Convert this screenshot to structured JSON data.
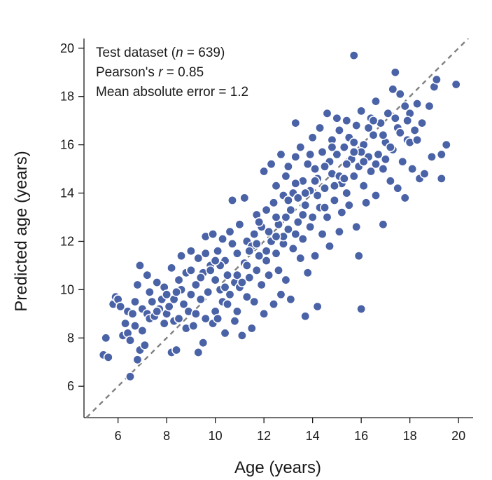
{
  "chart_data": {
    "type": "scatter",
    "xlabel": "Age (years)",
    "ylabel": "Predicted age (years)",
    "xlim": [
      4.6,
      20.6
    ],
    "ylim": [
      4.7,
      20.4
    ],
    "xticks": [
      "6",
      "8",
      "10",
      "12",
      "14",
      "16",
      "18",
      "20"
    ],
    "yticks": [
      "6",
      "8",
      "10",
      "12",
      "14",
      "16",
      "18",
      "20"
    ],
    "annotations": {
      "line1_prefix": "Test dataset (",
      "line1_n": "n",
      "line1_suffix": " = 639)",
      "line2_prefix": "Pearson's ",
      "line2_r": "r",
      "line2_suffix": " = 0.85",
      "line3": "Mean absolute error = 1.2"
    },
    "reference_line": "identity (y = x), dashed",
    "grid": false,
    "colors": {
      "points": "#4a62a6",
      "reference_line": "#808080"
    },
    "series": [
      {
        "points": [
          [
            5.4,
            7.3
          ],
          [
            5.5,
            8.0
          ],
          [
            5.6,
            7.2
          ],
          [
            5.8,
            9.4
          ],
          [
            5.9,
            9.7
          ],
          [
            6.0,
            9.6
          ],
          [
            6.1,
            9.3
          ],
          [
            6.2,
            8.1
          ],
          [
            6.4,
            8.2
          ],
          [
            6.4,
            9.1
          ],
          [
            6.5,
            7.9
          ],
          [
            6.5,
            6.4
          ],
          [
            6.6,
            9.0
          ],
          [
            6.7,
            8.5
          ],
          [
            6.8,
            7.1
          ],
          [
            6.8,
            10.2
          ],
          [
            6.9,
            11.0
          ],
          [
            6.9,
            7.5
          ],
          [
            7.0,
            8.3
          ],
          [
            7.0,
            9.2
          ],
          [
            7.1,
            7.7
          ],
          [
            7.2,
            10.6
          ],
          [
            7.2,
            9.0
          ],
          [
            7.3,
            8.8
          ],
          [
            7.4,
            9.5
          ],
          [
            7.5,
            8.9
          ],
          [
            7.6,
            10.3
          ],
          [
            7.7,
            9.2
          ],
          [
            7.8,
            9.6
          ],
          [
            7.9,
            10.1
          ],
          [
            8.0,
            9.0
          ],
          [
            8.1,
            9.3
          ],
          [
            8.2,
            7.4
          ],
          [
            8.2,
            10.9
          ],
          [
            8.3,
            8.7
          ],
          [
            8.3,
            9.6
          ],
          [
            8.4,
            7.5
          ],
          [
            8.5,
            10.4
          ],
          [
            8.5,
            8.8
          ],
          [
            8.6,
            11.4
          ],
          [
            8.7,
            9.4
          ],
          [
            8.8,
            8.4
          ],
          [
            8.8,
            10.7
          ],
          [
            8.9,
            9.1
          ],
          [
            9.0,
            11.6
          ],
          [
            9.0,
            9.8
          ],
          [
            9.1,
            8.5
          ],
          [
            9.2,
            10.2
          ],
          [
            9.3,
            7.4
          ],
          [
            9.3,
            11.3
          ],
          [
            9.4,
            9.6
          ],
          [
            9.5,
            7.8
          ],
          [
            9.5,
            10.7
          ],
          [
            9.6,
            8.8
          ],
          [
            9.6,
            12.2
          ],
          [
            9.7,
            9.9
          ],
          [
            9.8,
            11.0
          ],
          [
            9.9,
            8.6
          ],
          [
            9.9,
            12.3
          ],
          [
            10.0,
            10.4
          ],
          [
            10.0,
            9.1
          ],
          [
            10.1,
            11.6
          ],
          [
            10.1,
            8.8
          ],
          [
            10.2,
            10.0
          ],
          [
            10.3,
            12.1
          ],
          [
            10.3,
            9.5
          ],
          [
            10.4,
            11.2
          ],
          [
            10.4,
            8.2
          ],
          [
            10.5,
            10.6
          ],
          [
            10.6,
            9.8
          ],
          [
            10.6,
            12.4
          ],
          [
            10.7,
            13.7
          ],
          [
            10.8,
            10.3
          ],
          [
            10.8,
            8.7
          ],
          [
            10.9,
            11.5
          ],
          [
            10.9,
            9.1
          ],
          [
            11.0,
            12.7
          ],
          [
            11.0,
            10.1
          ],
          [
            11.1,
            8.1
          ],
          [
            11.2,
            13.8
          ],
          [
            11.2,
            11.1
          ],
          [
            11.3,
            9.7
          ],
          [
            11.3,
            12.0
          ],
          [
            11.4,
            10.5
          ],
          [
            11.5,
            8.4
          ],
          [
            11.5,
            11.8
          ],
          [
            11.6,
            12.3
          ],
          [
            11.6,
            9.5
          ],
          [
            11.7,
            10.8
          ],
          [
            11.7,
            13.1
          ],
          [
            11.8,
            11.4
          ],
          [
            11.9,
            10.2
          ],
          [
            11.9,
            12.6
          ],
          [
            12.0,
            9.0
          ],
          [
            12.0,
            14.9
          ],
          [
            12.1,
            11.2
          ],
          [
            12.1,
            13.3
          ],
          [
            12.2,
            10.6
          ],
          [
            12.3,
            12.0
          ],
          [
            12.3,
            15.2
          ],
          [
            12.4,
            9.4
          ],
          [
            12.4,
            13.6
          ],
          [
            12.5,
            11.5
          ],
          [
            12.5,
            14.3
          ],
          [
            12.6,
            10.8
          ],
          [
            12.6,
            12.7
          ],
          [
            12.7,
            15.6
          ],
          [
            12.7,
            9.8
          ],
          [
            12.8,
            13.9
          ],
          [
            12.8,
            11.9
          ],
          [
            12.9,
            14.7
          ],
          [
            12.9,
            10.4
          ],
          [
            13.0,
            12.5
          ],
          [
            13.0,
            15.1
          ],
          [
            13.1,
            13.3
          ],
          [
            13.1,
            9.6
          ],
          [
            13.2,
            14.0
          ],
          [
            13.2,
            11.7
          ],
          [
            13.3,
            16.9
          ],
          [
            13.3,
            15.5
          ],
          [
            13.4,
            12.8
          ],
          [
            13.4,
            13.8
          ],
          [
            13.5,
            11.3
          ],
          [
            13.5,
            15.9
          ],
          [
            13.6,
            14.5
          ],
          [
            13.6,
            12.1
          ],
          [
            13.7,
            13.5
          ],
          [
            13.7,
            8.9
          ],
          [
            13.8,
            15.2
          ],
          [
            13.8,
            10.7
          ],
          [
            13.9,
            14.1
          ],
          [
            13.9,
            12.6
          ],
          [
            14.0,
            16.3
          ],
          [
            14.0,
            13.0
          ],
          [
            14.1,
            15.0
          ],
          [
            14.1,
            11.4
          ],
          [
            14.2,
            14.6
          ],
          [
            14.2,
            9.3
          ],
          [
            14.3,
            16.7
          ],
          [
            14.3,
            13.4
          ],
          [
            14.4,
            15.7
          ],
          [
            14.4,
            12.3
          ],
          [
            14.5,
            14.2
          ],
          [
            14.6,
            17.3
          ],
          [
            14.6,
            13.0
          ],
          [
            14.7,
            15.3
          ],
          [
            14.7,
            11.8
          ],
          [
            14.8,
            16.2
          ],
          [
            14.8,
            14.8
          ],
          [
            14.9,
            13.7
          ],
          [
            15.0,
            17.1
          ],
          [
            15.0,
            15.6
          ],
          [
            15.1,
            12.4
          ],
          [
            15.1,
            16.6
          ],
          [
            15.2,
            14.4
          ],
          [
            15.2,
            13.2
          ],
          [
            15.3,
            15.9
          ],
          [
            15.4,
            17.0
          ],
          [
            15.4,
            14.0
          ],
          [
            15.5,
            16.3
          ],
          [
            15.5,
            13.5
          ],
          [
            15.6,
            15.4
          ],
          [
            15.7,
            19.7
          ],
          [
            15.7,
            14.7
          ],
          [
            15.8,
            12.6
          ],
          [
            15.8,
            16.8
          ],
          [
            15.9,
            11.4
          ],
          [
            15.9,
            15.1
          ],
          [
            16.0,
            9.2
          ],
          [
            16.0,
            17.4
          ],
          [
            16.1,
            14.3
          ],
          [
            16.1,
            16.0
          ],
          [
            16.2,
            13.6
          ],
          [
            16.3,
            15.5
          ],
          [
            16.4,
            17.1
          ],
          [
            16.4,
            14.9
          ],
          [
            16.5,
            16.4
          ],
          [
            16.6,
            13.9
          ],
          [
            16.6,
            17.8
          ],
          [
            16.7,
            15.6
          ],
          [
            16.8,
            16.9
          ],
          [
            16.9,
            12.7
          ],
          [
            16.9,
            15.0
          ],
          [
            17.0,
            16.1
          ],
          [
            17.1,
            17.3
          ],
          [
            17.2,
            14.5
          ],
          [
            17.3,
            18.3
          ],
          [
            17.3,
            15.8
          ],
          [
            17.4,
            19.0
          ],
          [
            17.5,
            16.7
          ],
          [
            17.5,
            14.2
          ],
          [
            17.6,
            18.1
          ],
          [
            17.7,
            15.3
          ],
          [
            17.8,
            17.6
          ],
          [
            17.8,
            13.8
          ],
          [
            17.9,
            16.2
          ],
          [
            18.0,
            17.3
          ],
          [
            18.1,
            15.0
          ],
          [
            18.2,
            16.6
          ],
          [
            18.3,
            17.7
          ],
          [
            18.4,
            14.6
          ],
          [
            18.5,
            16.9
          ],
          [
            18.6,
            14.8
          ],
          [
            18.8,
            17.6
          ],
          [
            18.9,
            15.5
          ],
          [
            19.0,
            18.4
          ],
          [
            19.1,
            18.7
          ],
          [
            19.3,
            14.6
          ],
          [
            19.3,
            15.6
          ],
          [
            19.5,
            16.0
          ],
          [
            19.9,
            18.5
          ],
          [
            7.6,
            9.1
          ],
          [
            8.0,
            9.8
          ],
          [
            8.6,
            10.0
          ],
          [
            9.2,
            9.0
          ],
          [
            9.4,
            10.5
          ],
          [
            9.8,
            10.8
          ],
          [
            10.2,
            11.0
          ],
          [
            10.5,
            9.4
          ],
          [
            10.7,
            11.9
          ],
          [
            11.1,
            10.3
          ],
          [
            11.4,
            11.6
          ],
          [
            11.8,
            12.8
          ],
          [
            12.2,
            12.4
          ],
          [
            12.5,
            13.0
          ],
          [
            12.8,
            12.2
          ],
          [
            13.0,
            13.7
          ],
          [
            13.3,
            14.4
          ],
          [
            13.6,
            13.1
          ],
          [
            13.9,
            15.6
          ],
          [
            14.2,
            13.9
          ],
          [
            14.5,
            15.1
          ],
          [
            14.8,
            15.9
          ],
          [
            15.1,
            14.7
          ],
          [
            15.4,
            15.2
          ],
          [
            15.7,
            16.1
          ],
          [
            16.0,
            15.7
          ],
          [
            16.3,
            16.7
          ],
          [
            16.6,
            15.2
          ],
          [
            16.9,
            16.4
          ],
          [
            17.2,
            15.9
          ],
          [
            17.6,
            16.5
          ],
          [
            18.0,
            16.1
          ],
          [
            6.3,
            8.6
          ],
          [
            6.7,
            9.5
          ],
          [
            7.3,
            9.9
          ],
          [
            7.9,
            8.6
          ],
          [
            8.4,
            9.9
          ],
          [
            9.0,
            10.8
          ],
          [
            9.6,
            11.5
          ],
          [
            10.0,
            11.2
          ],
          [
            10.4,
            10.1
          ],
          [
            10.9,
            10.6
          ],
          [
            11.3,
            11.0
          ],
          [
            11.7,
            11.9
          ],
          [
            12.1,
            11.6
          ],
          [
            12.5,
            12.2
          ],
          [
            12.9,
            13.0
          ],
          [
            13.3,
            12.3
          ],
          [
            13.7,
            14.0
          ],
          [
            14.1,
            14.5
          ],
          [
            14.5,
            13.4
          ],
          [
            14.9,
            14.3
          ],
          [
            15.3,
            14.6
          ],
          [
            15.7,
            15.7
          ],
          [
            16.1,
            15.3
          ],
          [
            16.5,
            17.0
          ],
          [
            17.0,
            15.4
          ],
          [
            17.4,
            17.1
          ],
          [
            17.9,
            17.0
          ],
          [
            18.3,
            16.2
          ]
        ]
      }
    ]
  }
}
